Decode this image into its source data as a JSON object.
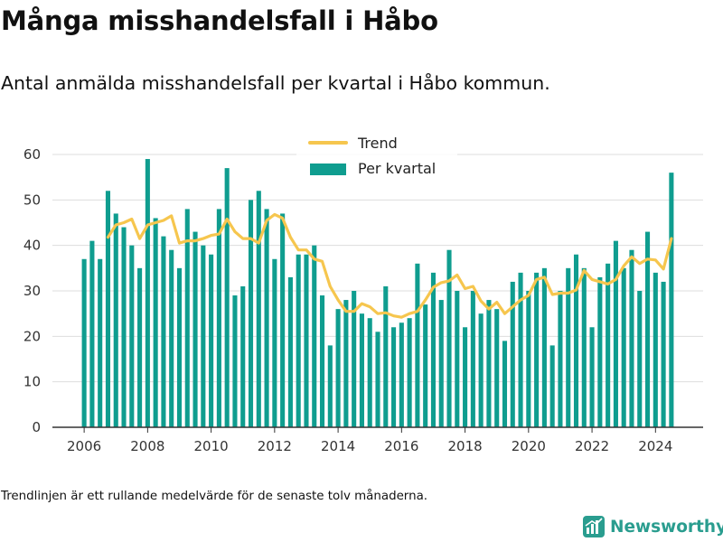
{
  "title": "Många misshandelsfall i Håbo",
  "subtitle": "Antal anmälda misshandelsfall per kvartal i Håbo kommun.",
  "footnote": "Trendlinjen är ett rullande medelvärde för de senaste tolv månaderna.",
  "brand": {
    "name": "Newsworthy",
    "color": "#2a9d8f",
    "icon": "newsworthy-logo-icon"
  },
  "colors": {
    "bar": "#0f9d8f",
    "trend": "#f6c64e",
    "grid": "#dddddd",
    "axis": "#333333",
    "text": "#333333"
  },
  "chart_data": {
    "type": "bar",
    "title": "Många misshandelsfall i Håbo",
    "xlabel": "",
    "ylabel": "",
    "ylim": [
      0,
      60
    ],
    "xlim": [
      2005.0,
      2025.5
    ],
    "yticks": [
      0,
      10,
      20,
      30,
      40,
      50,
      60
    ],
    "xticks": [
      2006,
      2008,
      2010,
      2012,
      2014,
      2016,
      2018,
      2020,
      2022,
      2024
    ],
    "xtick_labels": [
      "2006",
      "2008",
      "2010",
      "2012",
      "2014",
      "2016",
      "2018",
      "2020",
      "2022",
      "2024"
    ],
    "grid": true,
    "legend": {
      "placement": "top-center",
      "entries": [
        "Trend",
        "Per kvartal"
      ]
    },
    "series": [
      {
        "name": "Per kvartal",
        "type": "bar",
        "x": [
          2006.0,
          2006.25,
          2006.5,
          2006.75,
          2007.0,
          2007.25,
          2007.5,
          2007.75,
          2008.0,
          2008.25,
          2008.5,
          2008.75,
          2009.0,
          2009.25,
          2009.5,
          2009.75,
          2010.0,
          2010.25,
          2010.5,
          2010.75,
          2011.0,
          2011.25,
          2011.5,
          2011.75,
          2012.0,
          2012.25,
          2012.5,
          2012.75,
          2013.0,
          2013.25,
          2013.5,
          2013.75,
          2014.0,
          2014.25,
          2014.5,
          2014.75,
          2015.0,
          2015.25,
          2015.5,
          2015.75,
          2016.0,
          2016.25,
          2016.5,
          2016.75,
          2017.0,
          2017.25,
          2017.5,
          2017.75,
          2018.0,
          2018.25,
          2018.5,
          2018.75,
          2019.0,
          2019.25,
          2019.5,
          2019.75,
          2020.0,
          2020.25,
          2020.5,
          2020.75,
          2021.0,
          2021.25,
          2021.5,
          2021.75,
          2022.0,
          2022.25,
          2022.5,
          2022.75,
          2023.0,
          2023.25,
          2023.5,
          2023.75,
          2024.0,
          2024.25,
          2024.5
        ],
        "values": [
          37,
          41,
          37,
          52,
          47,
          44,
          40,
          35,
          59,
          46,
          42,
          39,
          35,
          48,
          43,
          40,
          38,
          48,
          57,
          29,
          31,
          50,
          52,
          48,
          37,
          47,
          33,
          38,
          38,
          40,
          29,
          18,
          26,
          28,
          30,
          25,
          24,
          21,
          31,
          22,
          23,
          24,
          36,
          27,
          34,
          28,
          39,
          30,
          22,
          30,
          25,
          28,
          26,
          19,
          32,
          34,
          30,
          34,
          35,
          18,
          30,
          35,
          38,
          35,
          22,
          33,
          36,
          41,
          35,
          39,
          30,
          43,
          34,
          32,
          56
        ]
      },
      {
        "name": "Trend",
        "type": "line",
        "x": [
          2006.75,
          2007.0,
          2007.25,
          2007.5,
          2007.75,
          2008.0,
          2008.25,
          2008.5,
          2008.75,
          2009.0,
          2009.25,
          2009.5,
          2009.75,
          2010.0,
          2010.25,
          2010.5,
          2010.75,
          2011.0,
          2011.25,
          2011.5,
          2011.75,
          2012.0,
          2012.25,
          2012.5,
          2012.75,
          2013.0,
          2013.25,
          2013.5,
          2013.75,
          2014.0,
          2014.25,
          2014.5,
          2014.75,
          2015.0,
          2015.25,
          2015.5,
          2015.75,
          2016.0,
          2016.25,
          2016.5,
          2016.75,
          2017.0,
          2017.25,
          2017.5,
          2017.75,
          2018.0,
          2018.25,
          2018.5,
          2018.75,
          2019.0,
          2019.25,
          2019.5,
          2019.75,
          2020.0,
          2020.25,
          2020.5,
          2020.75,
          2021.0,
          2021.25,
          2021.5,
          2021.75,
          2022.0,
          2022.25,
          2022.5,
          2022.75,
          2023.0,
          2023.25,
          2023.5,
          2023.75,
          2024.0,
          2024.25,
          2024.5
        ],
        "values": [
          41.8,
          44.5,
          45.0,
          45.8,
          41.5,
          44.5,
          45.0,
          45.5,
          46.5,
          40.5,
          41.0,
          41.0,
          41.5,
          42.2,
          42.5,
          45.8,
          43.0,
          41.5,
          41.5,
          40.5,
          45.5,
          46.8,
          46.0,
          41.8,
          39.0,
          39.0,
          37.0,
          36.5,
          31.0,
          28.0,
          25.5,
          25.5,
          27.2,
          26.5,
          25.0,
          25.2,
          24.5,
          24.2,
          25.0,
          25.5,
          28.0,
          30.8,
          31.8,
          32.2,
          33.5,
          30.5,
          31.0,
          27.8,
          26.0,
          27.5,
          25.0,
          26.5,
          28.0,
          29.0,
          32.5,
          33.0,
          29.2,
          29.5,
          29.5,
          30.2,
          34.5,
          32.5,
          32.0,
          31.5,
          32.5,
          35.5,
          37.5,
          36.0,
          37.0,
          36.8,
          34.8,
          41.5
        ]
      }
    ]
  }
}
